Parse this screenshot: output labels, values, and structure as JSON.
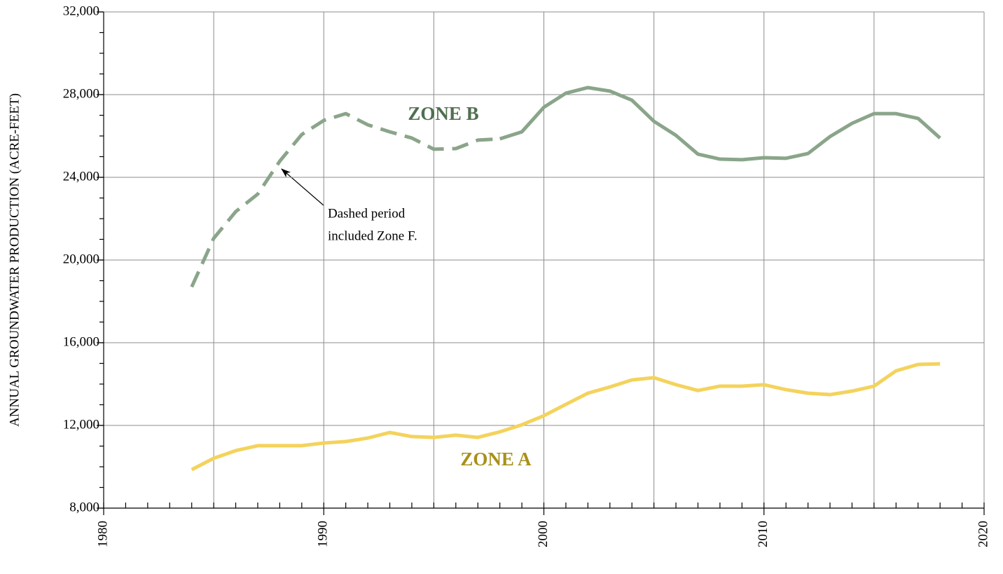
{
  "chart_data": {
    "type": "line",
    "y_label": "ANNUAL GROUNDWATER PRODUCTION (ACRE-FEET)",
    "x": [
      1984,
      1985,
      1986,
      1987,
      1988,
      1989,
      1990,
      1991,
      1992,
      1993,
      1994,
      1995,
      1996,
      1997,
      1998,
      1999,
      2000,
      2001,
      2002,
      2003,
      2004,
      2005,
      2006,
      2007,
      2008,
      2009,
      2010,
      2011,
      2012,
      2013,
      2014,
      2015,
      2016,
      2017,
      2018
    ],
    "series": [
      {
        "name": "ZONE A",
        "color": "#f4d35c",
        "label_color": "#a8901a",
        "values": [
          9860,
          10410,
          10780,
          11020,
          11020,
          11020,
          11150,
          11220,
          11390,
          11660,
          11460,
          11420,
          11530,
          11420,
          11690,
          12030,
          12470,
          13020,
          13560,
          13860,
          14200,
          14310,
          13970,
          13690,
          13900,
          13900,
          13970,
          13730,
          13560,
          13490,
          13660,
          13900,
          14640,
          14950,
          14980
        ]
      },
      {
        "name": "ZONE B",
        "color": "#8aa58a",
        "label_color": "#4f6f4f",
        "dashed_until": 1998,
        "values": [
          18700,
          21050,
          22340,
          23190,
          24780,
          26070,
          26750,
          27080,
          26540,
          26200,
          25900,
          25360,
          25390,
          25800,
          25860,
          26200,
          27390,
          28070,
          28340,
          28170,
          27730,
          26710,
          26030,
          25120,
          24880,
          24850,
          24950,
          24920,
          25150,
          25970,
          26610,
          27080,
          27080,
          26850,
          25900
        ]
      }
    ],
    "annotation": [
      "Dashed period",
      "included Zone F."
    ],
    "xlim": [
      1980,
      2020
    ],
    "xticks": [
      1980,
      1990,
      2000,
      2010,
      2020
    ],
    "x_grid": [
      1985,
      1990,
      1995,
      2000,
      2005,
      2010,
      2015,
      2020
    ],
    "x_minor_step": 1,
    "ylim": [
      8000,
      32000
    ],
    "yticks": [
      {
        "value": 8000,
        "label": "8,000"
      },
      {
        "value": 12000,
        "label": "12,000"
      },
      {
        "value": 16000,
        "label": "16,000"
      },
      {
        "value": 20000,
        "label": "20,000"
      },
      {
        "value": 24000,
        "label": "24,000"
      },
      {
        "value": 28000,
        "label": "28,000"
      },
      {
        "value": 32000,
        "label": "32,000"
      }
    ],
    "y_minor_step": 1000,
    "grid": true
  }
}
